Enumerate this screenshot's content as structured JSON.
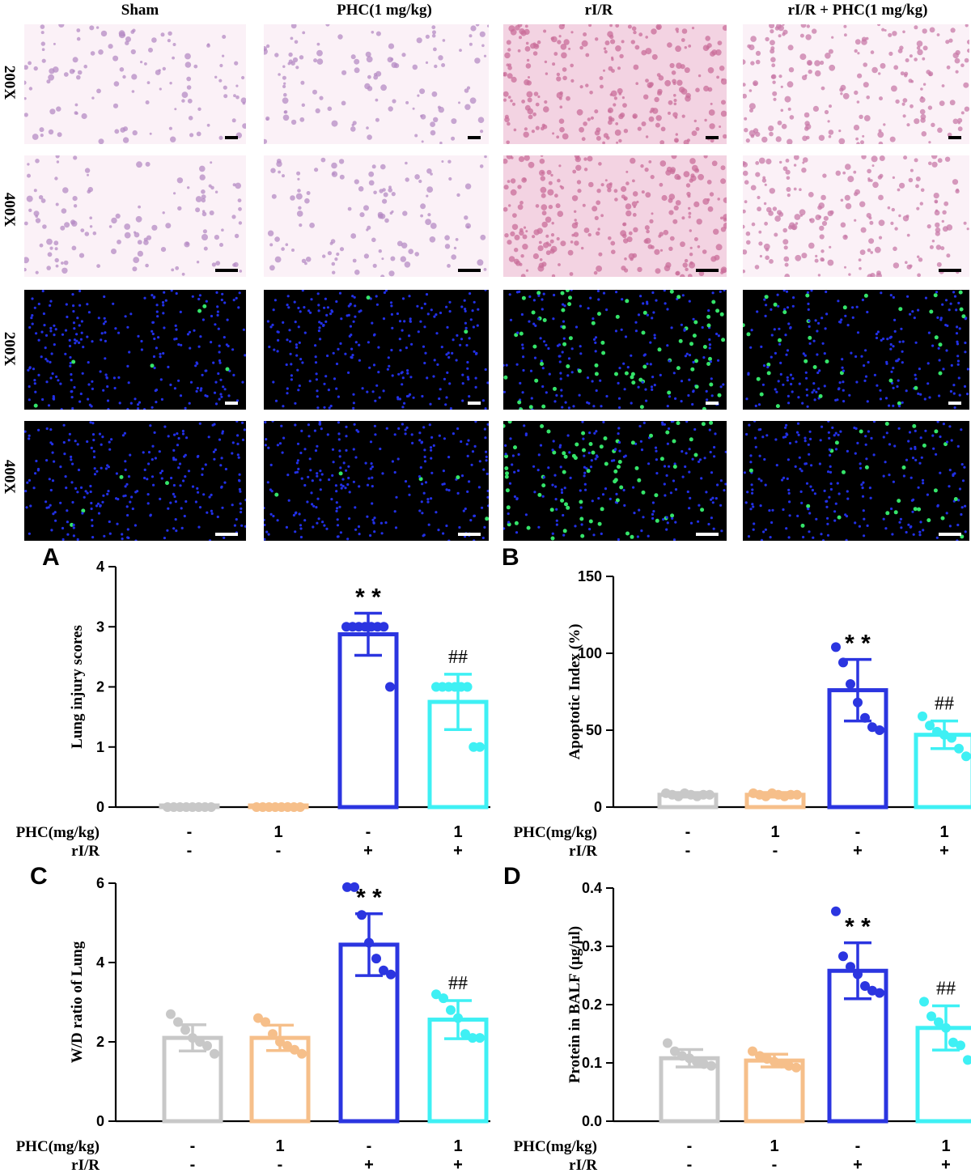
{
  "micrograph_panel": {
    "columns": [
      "Sham",
      "PHC(1 mg/kg)",
      "rI/R",
      "rI/R + PHC(1 mg/kg)"
    ],
    "rows": [
      {
        "label": "200X",
        "stain": "H&E"
      },
      {
        "label": "400X",
        "stain": "H&E"
      },
      {
        "label": "200X",
        "stain": "TUNEL"
      },
      {
        "label": "400X",
        "stain": "TUNEL"
      }
    ]
  },
  "conditions": {
    "row1_label": "PHC(mg/kg)",
    "row2_label": "rI/R",
    "phc": [
      "-",
      "1",
      "-",
      "1"
    ],
    "rir": [
      "-",
      "-",
      "+",
      "+"
    ]
  },
  "colors": {
    "sham": "#c8c8c8",
    "phc": "#f6bf8a",
    "rir": "#2b35e0",
    "rir_phc": "#3ef0f4"
  },
  "chart_data": [
    {
      "panel": "A",
      "type": "bar",
      "ylabel": "Lung injury scores",
      "ylim": [
        0,
        4
      ],
      "yticks": [
        "0",
        "1",
        "2",
        "3",
        "4"
      ],
      "categories": [
        "Sham",
        "PHC(1 mg/kg)",
        "rI/R",
        "rI/R + PHC(1 mg/kg)"
      ],
      "values": [
        0,
        0,
        2.875,
        1.75
      ],
      "sd": [
        0,
        0,
        0.35,
        0.46
      ],
      "points": [
        [
          0,
          0,
          0,
          0,
          0,
          0,
          0,
          0
        ],
        [
          0,
          0,
          0,
          0,
          0,
          0,
          0,
          0
        ],
        [
          3,
          3,
          3,
          3,
          3,
          3,
          3,
          2
        ],
        [
          2,
          2,
          2,
          2,
          2,
          2,
          1,
          1
        ]
      ],
      "annotations": [
        "",
        "",
        "**",
        "##"
      ]
    },
    {
      "panel": "B",
      "type": "bar",
      "ylabel": "Apoptotic Index (%)",
      "ylim": [
        0,
        150
      ],
      "yticks": [
        "0",
        "50",
        "100",
        "150"
      ],
      "categories": [
        "Sham",
        "PHC(1 mg/kg)",
        "rI/R",
        "rI/R + PHC(1 mg/kg)"
      ],
      "values": [
        8,
        8,
        76,
        47
      ],
      "sd": [
        1.5,
        1.5,
        20,
        9
      ],
      "points": [
        [
          9,
          8,
          7,
          9,
          8,
          7,
          8,
          8
        ],
        [
          9,
          8,
          7,
          9,
          8,
          7,
          8,
          8
        ],
        [
          104,
          94,
          80,
          68,
          58,
          52,
          50
        ],
        [
          59,
          53,
          49,
          47,
          45,
          38,
          33
        ]
      ],
      "annotations": [
        "",
        "",
        "**",
        "##"
      ]
    },
    {
      "panel": "C",
      "type": "bar",
      "ylabel": "W/D ratio of Lung",
      "ylim": [
        0,
        6
      ],
      "yticks": [
        "0",
        "2",
        "4",
        "6"
      ],
      "categories": [
        "Sham",
        "PHC(1 mg/kg)",
        "rI/R",
        "rI/R + PHC(1 mg/kg)"
      ],
      "values": [
        2.1,
        2.1,
        4.45,
        2.56
      ],
      "sd": [
        0.33,
        0.32,
        0.78,
        0.48
      ],
      "points": [
        [
          2.7,
          2.5,
          2.3,
          2.1,
          2.0,
          1.9,
          1.7
        ],
        [
          2.6,
          2.5,
          2.2,
          2.0,
          1.9,
          1.8,
          1.7
        ],
        [
          5.9,
          5.9,
          5.2,
          4.5,
          4.1,
          3.8,
          3.7
        ],
        [
          3.2,
          3.1,
          2.8,
          2.6,
          2.2,
          2.1,
          2.1
        ]
      ],
      "annotations": [
        "",
        "",
        "**",
        "##"
      ]
    },
    {
      "panel": "D",
      "type": "bar",
      "ylabel": "Protein in BALF (μg/μl)",
      "ylim": [
        0,
        0.4
      ],
      "yticks": [
        "0.0",
        "0.1",
        "0.2",
        "0.3",
        "0.4"
      ],
      "categories": [
        "Sham",
        "PHC(1 mg/kg)",
        "rI/R",
        "rI/R + PHC(1 mg/kg)"
      ],
      "values": [
        0.108,
        0.104,
        0.258,
        0.16
      ],
      "sd": [
        0.015,
        0.011,
        0.048,
        0.038
      ],
      "points": [
        [
          0.134,
          0.12,
          0.112,
          0.108,
          0.102,
          0.098,
          0.095
        ],
        [
          0.12,
          0.112,
          0.107,
          0.102,
          0.099,
          0.095,
          0.092
        ],
        [
          0.36,
          0.283,
          0.265,
          0.252,
          0.232,
          0.224,
          0.22
        ],
        [
          0.205,
          0.18,
          0.17,
          0.16,
          0.135,
          0.13,
          0.105
        ]
      ],
      "annotations": [
        "",
        "",
        "**",
        "##"
      ]
    }
  ]
}
